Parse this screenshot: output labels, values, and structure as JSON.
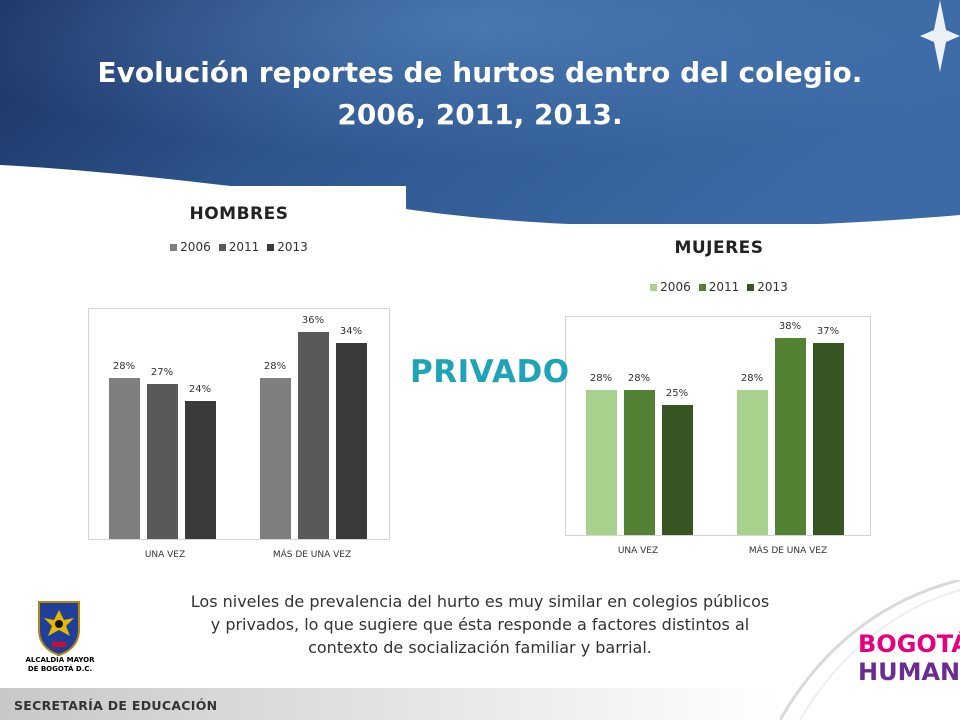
{
  "slide": {
    "title_line1": "Evolución reportes de hurtos dentro del colegio.",
    "title_line2": "2006, 2011, 2013.",
    "center_label": "PRIVADO",
    "note": "Los niveles de prevalencia del hurto es  muy similar en colegios públicos y privados, lo que sugiere  que ésta responde a factores distintos al contexto de socialización familiar y barrial.",
    "footer": "SECRETARÍA DE EDUCACIÓN",
    "gov_logo_text": [
      "ALCALDÍA MAYOR",
      "DE BOGOTÁ D.C."
    ],
    "brand_line1": "BOGOTÁ",
    "brand_line2": "HUMANA",
    "colors": {
      "header_dark": "#1b2f5f",
      "header_mid": "#2f5a93",
      "privado": "#1fa3b9"
    }
  },
  "chart_data": [
    {
      "type": "bar",
      "title": "HOMBRES",
      "categories": [
        "UNA VEZ",
        "MÁS DE UNA VEZ"
      ],
      "series": [
        {
          "name": "2006",
          "values": [
            28,
            28
          ],
          "labels": [
            "28%",
            "28%"
          ],
          "color": "#7f7f7f"
        },
        {
          "name": "2011",
          "values": [
            27,
            36
          ],
          "labels": [
            "27%",
            "36%"
          ],
          "color": "#595959"
        },
        {
          "name": "2013",
          "values": [
            24,
            34
          ],
          "labels": [
            "24%",
            "34%"
          ],
          "color": "#3a3a3a"
        }
      ],
      "ylim": [
        0,
        40
      ],
      "grid": false,
      "legend": "top"
    },
    {
      "type": "bar",
      "title": "MUJERES",
      "categories": [
        "UNA VEZ",
        "MÁS DE UNA VEZ"
      ],
      "series": [
        {
          "name": "2006",
          "values": [
            28,
            28
          ],
          "labels": [
            "28%",
            "28%"
          ],
          "color": "#a9d18e"
        },
        {
          "name": "2011",
          "values": [
            28,
            38
          ],
          "labels": [
            "28%",
            "38%"
          ],
          "color": "#548235"
        },
        {
          "name": "2013",
          "values": [
            25,
            37
          ],
          "labels": [
            "25%",
            "37%"
          ],
          "color": "#375623"
        }
      ],
      "ylim": [
        0,
        42
      ],
      "grid": false,
      "legend": "top"
    }
  ]
}
